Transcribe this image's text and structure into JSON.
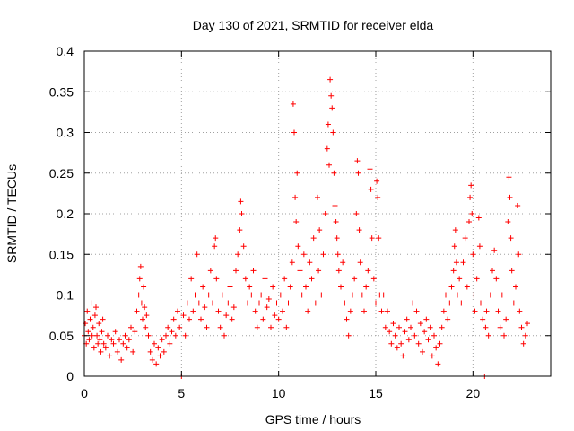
{
  "chart_data": {
    "type": "scatter",
    "title": "Day 130 of 2021, SRMTID for receiver elda",
    "xlabel": "GPS time / hours",
    "ylabel": "SRMTID / TECUs",
    "xlim": [
      0,
      24
    ],
    "ylim": [
      0,
      0.4
    ],
    "x_ticks": [
      0,
      5,
      10,
      15,
      20
    ],
    "y_ticks": [
      0,
      0.05,
      0.1,
      0.15,
      0.2,
      0.25,
      0.3,
      0.35,
      0.4
    ],
    "x_tick_labels": [
      "0",
      "5",
      "10",
      "15",
      "20"
    ],
    "y_tick_labels": [
      "0",
      "0.05",
      "0.1",
      "0.15",
      "0.2",
      "0.25",
      "0.3",
      "0.35",
      "0.4"
    ],
    "grid": true,
    "marker": "plus",
    "series_color": "#ff0000",
    "series": [
      {
        "name": "SRMTID",
        "points": [
          [
            0.0,
            0.05
          ],
          [
            0.05,
            0.065
          ],
          [
            0.1,
            0.04
          ],
          [
            0.15,
            0.08
          ],
          [
            0.2,
            0.055
          ],
          [
            0.25,
            0.045
          ],
          [
            0.3,
            0.07
          ],
          [
            0.35,
            0.09
          ],
          [
            0.4,
            0.05
          ],
          [
            0.45,
            0.06
          ],
          [
            0.5,
            0.035
          ],
          [
            0.55,
            0.075
          ],
          [
            0.6,
            0.085
          ],
          [
            0.65,
            0.05
          ],
          [
            0.7,
            0.04
          ],
          [
            0.75,
            0.065
          ],
          [
            0.8,
            0.045
          ],
          [
            0.85,
            0.03
          ],
          [
            0.9,
            0.055
          ],
          [
            0.95,
            0.07
          ],
          [
            1.0,
            0.04
          ],
          [
            1.1,
            0.035
          ],
          [
            1.2,
            0.05
          ],
          [
            1.3,
            0.025
          ],
          [
            1.4,
            0.045
          ],
          [
            1.5,
            0.04
          ],
          [
            1.6,
            0.055
          ],
          [
            1.7,
            0.03
          ],
          [
            1.8,
            0.045
          ],
          [
            1.9,
            0.02
          ],
          [
            2.0,
            0.04
          ],
          [
            2.1,
            0.05
          ],
          [
            2.2,
            0.035
          ],
          [
            2.3,
            0.045
          ],
          [
            2.4,
            0.06
          ],
          [
            2.5,
            0.03
          ],
          [
            2.6,
            0.055
          ],
          [
            2.7,
            0.08
          ],
          [
            2.8,
            0.1
          ],
          [
            2.85,
            0.12
          ],
          [
            2.9,
            0.135
          ],
          [
            2.95,
            0.09
          ],
          [
            3.0,
            0.07
          ],
          [
            3.05,
            0.11
          ],
          [
            3.1,
            0.085
          ],
          [
            3.15,
            0.06
          ],
          [
            3.2,
            0.075
          ],
          [
            3.3,
            0.05
          ],
          [
            3.4,
            0.03
          ],
          [
            3.5,
            0.02
          ],
          [
            3.6,
            0.04
          ],
          [
            3.7,
            0.015
          ],
          [
            3.8,
            0.035
          ],
          [
            3.9,
            0.025
          ],
          [
            4.0,
            0.045
          ],
          [
            4.1,
            0.03
          ],
          [
            4.2,
            0.05
          ],
          [
            4.3,
            0.06
          ],
          [
            4.4,
            0.04
          ],
          [
            4.5,
            0.055
          ],
          [
            4.6,
            0.07
          ],
          [
            4.7,
            0.05
          ],
          [
            4.8,
            0.08
          ],
          [
            4.9,
            0.06
          ],
          [
            5.0,
            0.0
          ],
          [
            5.1,
            0.075
          ],
          [
            5.2,
            0.05
          ],
          [
            5.3,
            0.09
          ],
          [
            5.4,
            0.07
          ],
          [
            5.5,
            0.12
          ],
          [
            5.6,
            0.08
          ],
          [
            5.7,
            0.1
          ],
          [
            5.8,
            0.15
          ],
          [
            5.9,
            0.09
          ],
          [
            6.0,
            0.07
          ],
          [
            6.1,
            0.11
          ],
          [
            6.2,
            0.085
          ],
          [
            6.3,
            0.06
          ],
          [
            6.4,
            0.1
          ],
          [
            6.5,
            0.13
          ],
          [
            6.6,
            0.09
          ],
          [
            6.7,
            0.16
          ],
          [
            6.75,
            0.17
          ],
          [
            6.8,
            0.12
          ],
          [
            6.9,
            0.08
          ],
          [
            7.0,
            0.06
          ],
          [
            7.1,
            0.1
          ],
          [
            7.2,
            0.05
          ],
          [
            7.3,
            0.075
          ],
          [
            7.4,
            0.09
          ],
          [
            7.5,
            0.11
          ],
          [
            7.6,
            0.07
          ],
          [
            7.7,
            0.085
          ],
          [
            7.8,
            0.13
          ],
          [
            7.9,
            0.15
          ],
          [
            8.0,
            0.18
          ],
          [
            8.05,
            0.215
          ],
          [
            8.1,
            0.2
          ],
          [
            8.2,
            0.16
          ],
          [
            8.3,
            0.12
          ],
          [
            8.4,
            0.09
          ],
          [
            8.5,
            0.11
          ],
          [
            8.6,
            0.1
          ],
          [
            8.7,
            0.13
          ],
          [
            8.8,
            0.08
          ],
          [
            8.9,
            0.06
          ],
          [
            9.0,
            0.09
          ],
          [
            9.1,
            0.1
          ],
          [
            9.2,
            0.07
          ],
          [
            9.3,
            0.12
          ],
          [
            9.4,
            0.085
          ],
          [
            9.5,
            0.095
          ],
          [
            9.6,
            0.06
          ],
          [
            9.7,
            0.11
          ],
          [
            9.8,
            0.075
          ],
          [
            9.9,
            0.09
          ],
          [
            10.0,
            0.07
          ],
          [
            10.1,
            0.1
          ],
          [
            10.2,
            0.08
          ],
          [
            10.3,
            0.12
          ],
          [
            10.4,
            0.06
          ],
          [
            10.5,
            0.09
          ],
          [
            10.6,
            0.11
          ],
          [
            10.7,
            0.14
          ],
          [
            10.75,
            0.335
          ],
          [
            10.8,
            0.3
          ],
          [
            10.85,
            0.22
          ],
          [
            10.9,
            0.19
          ],
          [
            10.95,
            0.25
          ],
          [
            11.0,
            0.16
          ],
          [
            11.1,
            0.13
          ],
          [
            11.2,
            0.1
          ],
          [
            11.3,
            0.15
          ],
          [
            11.4,
            0.11
          ],
          [
            11.5,
            0.08
          ],
          [
            11.6,
            0.14
          ],
          [
            11.7,
            0.12
          ],
          [
            11.8,
            0.17
          ],
          [
            11.9,
            0.09
          ],
          [
            12.0,
            0.22
          ],
          [
            12.05,
            0.13
          ],
          [
            12.1,
            0.18
          ],
          [
            12.2,
            0.1
          ],
          [
            12.3,
            0.15
          ],
          [
            12.4,
            0.2
          ],
          [
            12.5,
            0.28
          ],
          [
            12.55,
            0.31
          ],
          [
            12.6,
            0.26
          ],
          [
            12.65,
            0.365
          ],
          [
            12.7,
            0.345
          ],
          [
            12.75,
            0.33
          ],
          [
            12.8,
            0.3
          ],
          [
            12.85,
            0.25
          ],
          [
            12.9,
            0.21
          ],
          [
            12.95,
            0.19
          ],
          [
            13.0,
            0.17
          ],
          [
            13.05,
            0.15
          ],
          [
            13.1,
            0.13
          ],
          [
            13.2,
            0.11
          ],
          [
            13.3,
            0.14
          ],
          [
            13.4,
            0.09
          ],
          [
            13.5,
            0.07
          ],
          [
            13.6,
            0.05
          ],
          [
            13.7,
            0.08
          ],
          [
            13.8,
            0.1
          ],
          [
            13.9,
            0.12
          ],
          [
            14.0,
            0.2
          ],
          [
            14.05,
            0.265
          ],
          [
            14.1,
            0.25
          ],
          [
            14.15,
            0.18
          ],
          [
            14.2,
            0.14
          ],
          [
            14.3,
            0.1
          ],
          [
            14.4,
            0.08
          ],
          [
            14.5,
            0.11
          ],
          [
            14.6,
            0.13
          ],
          [
            14.7,
            0.255
          ],
          [
            14.75,
            0.23
          ],
          [
            14.8,
            0.17
          ],
          [
            14.9,
            0.12
          ],
          [
            15.0,
            0.09
          ],
          [
            15.05,
            0.24
          ],
          [
            15.1,
            0.22
          ],
          [
            15.15,
            0.17
          ],
          [
            15.2,
            0.1
          ],
          [
            15.3,
            0.08
          ],
          [
            15.4,
            0.1
          ],
          [
            15.5,
            0.06
          ],
          [
            15.6,
            0.08
          ],
          [
            15.7,
            0.055
          ],
          [
            15.8,
            0.04
          ],
          [
            15.9,
            0.065
          ],
          [
            16.0,
            0.05
          ],
          [
            16.1,
            0.035
          ],
          [
            16.2,
            0.06
          ],
          [
            16.3,
            0.04
          ],
          [
            16.4,
            0.025
          ],
          [
            16.5,
            0.055
          ],
          [
            16.6,
            0.07
          ],
          [
            16.7,
            0.045
          ],
          [
            16.8,
            0.06
          ],
          [
            16.9,
            0.09
          ],
          [
            17.0,
            0.05
          ],
          [
            17.1,
            0.08
          ],
          [
            17.2,
            0.04
          ],
          [
            17.3,
            0.065
          ],
          [
            17.4,
            0.03
          ],
          [
            17.5,
            0.055
          ],
          [
            17.6,
            0.07
          ],
          [
            17.7,
            0.045
          ],
          [
            17.8,
            0.06
          ],
          [
            17.9,
            0.025
          ],
          [
            18.0,
            0.05
          ],
          [
            18.1,
            0.035
          ],
          [
            18.2,
            0.015
          ],
          [
            18.3,
            0.04
          ],
          [
            18.4,
            0.06
          ],
          [
            18.5,
            0.08
          ],
          [
            18.6,
            0.1
          ],
          [
            18.7,
            0.07
          ],
          [
            18.8,
            0.09
          ],
          [
            18.9,
            0.11
          ],
          [
            19.0,
            0.13
          ],
          [
            19.05,
            0.16
          ],
          [
            19.1,
            0.18
          ],
          [
            19.15,
            0.14
          ],
          [
            19.2,
            0.1
          ],
          [
            19.3,
            0.12
          ],
          [
            19.4,
            0.09
          ],
          [
            19.5,
            0.14
          ],
          [
            19.6,
            0.17
          ],
          [
            19.7,
            0.11
          ],
          [
            19.8,
            0.19
          ],
          [
            19.85,
            0.22
          ],
          [
            19.9,
            0.235
          ],
          [
            19.95,
            0.2
          ],
          [
            20.0,
            0.15
          ],
          [
            20.05,
            0.1
          ],
          [
            20.1,
            0.08
          ],
          [
            20.2,
            0.12
          ],
          [
            20.3,
            0.195
          ],
          [
            20.35,
            0.16
          ],
          [
            20.4,
            0.09
          ],
          [
            20.5,
            0.07
          ],
          [
            20.6,
            0.0
          ],
          [
            20.65,
            0.06
          ],
          [
            20.7,
            0.08
          ],
          [
            20.8,
            0.05
          ],
          [
            20.9,
            0.1
          ],
          [
            21.0,
            0.13
          ],
          [
            21.1,
            0.155
          ],
          [
            21.2,
            0.12
          ],
          [
            21.3,
            0.08
          ],
          [
            21.4,
            0.06
          ],
          [
            21.5,
            0.1
          ],
          [
            21.6,
            0.05
          ],
          [
            21.7,
            0.07
          ],
          [
            21.8,
            0.19
          ],
          [
            21.85,
            0.245
          ],
          [
            21.9,
            0.22
          ],
          [
            21.95,
            0.17
          ],
          [
            22.0,
            0.13
          ],
          [
            22.1,
            0.09
          ],
          [
            22.2,
            0.11
          ],
          [
            22.3,
            0.21
          ],
          [
            22.35,
            0.15
          ],
          [
            22.4,
            0.08
          ],
          [
            22.5,
            0.06
          ],
          [
            22.6,
            0.04
          ],
          [
            22.7,
            0.05
          ],
          [
            22.8,
            0.065
          ]
        ]
      }
    ]
  }
}
